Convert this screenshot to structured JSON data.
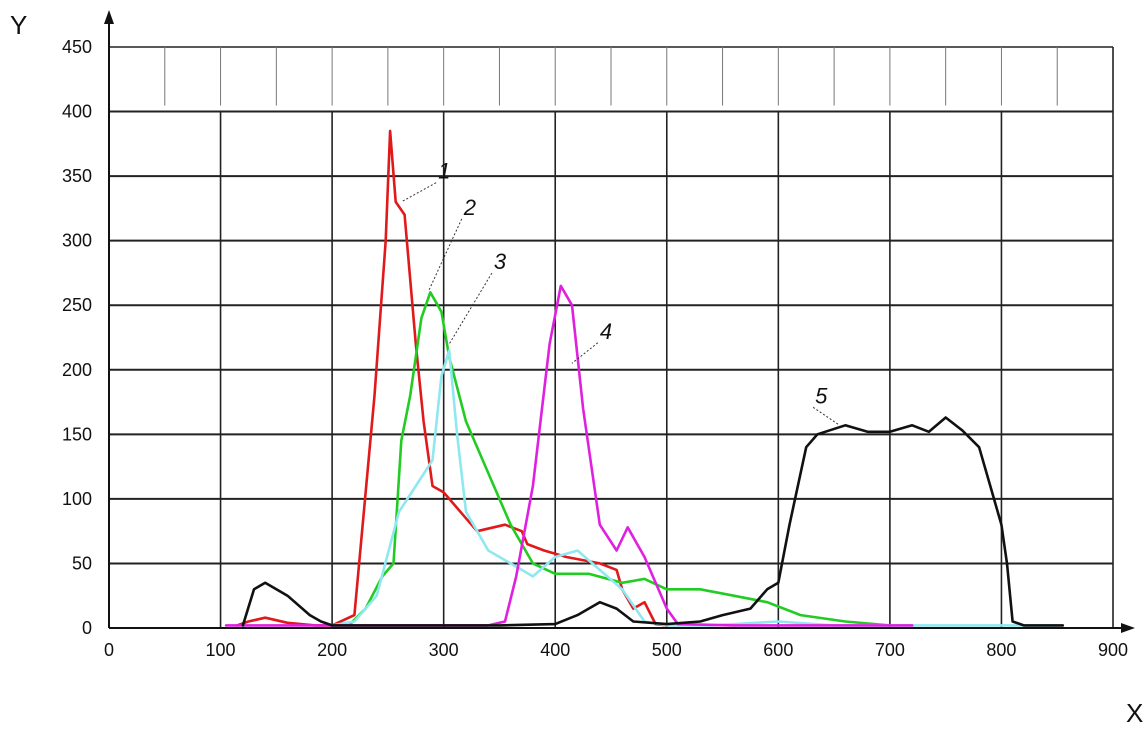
{
  "chart_data": {
    "type": "line",
    "xlabel": "X",
    "ylabel": "Y",
    "xlim": [
      0,
      900
    ],
    "ylim": [
      0,
      450
    ],
    "x_ticks": [
      0,
      100,
      200,
      300,
      400,
      500,
      600,
      700,
      800,
      900
    ],
    "y_ticks": [
      0,
      50,
      100,
      150,
      200,
      250,
      300,
      350,
      400,
      450
    ],
    "grid": true,
    "series": [
      {
        "name": "1",
        "color": "#e01a1a",
        "label_at": [
          295,
          348
        ],
        "pointer_to": [
          262,
          330
        ],
        "points": [
          [
            115,
            2
          ],
          [
            125,
            5
          ],
          [
            140,
            8
          ],
          [
            160,
            4
          ],
          [
            185,
            2
          ],
          [
            200,
            2
          ],
          [
            220,
            10
          ],
          [
            238,
            180
          ],
          [
            248,
            300
          ],
          [
            252,
            385
          ],
          [
            257,
            330
          ],
          [
            265,
            320
          ],
          [
            275,
            220
          ],
          [
            282,
            160
          ],
          [
            290,
            110
          ],
          [
            300,
            105
          ],
          [
            320,
            85
          ],
          [
            330,
            75
          ],
          [
            355,
            80
          ],
          [
            370,
            75
          ],
          [
            375,
            65
          ],
          [
            390,
            60
          ],
          [
            410,
            55
          ],
          [
            440,
            50
          ],
          [
            455,
            45
          ],
          [
            460,
            30
          ],
          [
            470,
            15
          ],
          [
            480,
            20
          ],
          [
            490,
            3
          ],
          [
            500,
            2
          ]
        ]
      },
      {
        "name": "2",
        "color": "#22cc22",
        "label_at": [
          318,
          320
        ],
        "pointer_to": [
          287,
          262
        ],
        "points": [
          [
            215,
            2
          ],
          [
            230,
            15
          ],
          [
            245,
            40
          ],
          [
            255,
            50
          ],
          [
            262,
            145
          ],
          [
            270,
            180
          ],
          [
            280,
            240
          ],
          [
            288,
            260
          ],
          [
            298,
            245
          ],
          [
            305,
            210
          ],
          [
            320,
            160
          ],
          [
            340,
            120
          ],
          [
            360,
            80
          ],
          [
            380,
            50
          ],
          [
            400,
            42
          ],
          [
            430,
            42
          ],
          [
            460,
            35
          ],
          [
            480,
            38
          ],
          [
            500,
            30
          ],
          [
            530,
            30
          ],
          [
            560,
            25
          ],
          [
            590,
            20
          ],
          [
            620,
            10
          ],
          [
            660,
            5
          ],
          [
            700,
            2
          ]
        ]
      },
      {
        "name": "3",
        "color": "#8fe8f0",
        "label_at": [
          345,
          278
        ],
        "pointer_to": [
          305,
          220
        ],
        "points": [
          [
            200,
            2
          ],
          [
            220,
            5
          ],
          [
            240,
            25
          ],
          [
            260,
            90
          ],
          [
            275,
            110
          ],
          [
            290,
            130
          ],
          [
            298,
            195
          ],
          [
            305,
            215
          ],
          [
            312,
            150
          ],
          [
            320,
            90
          ],
          [
            340,
            60
          ],
          [
            360,
            50
          ],
          [
            370,
            45
          ],
          [
            380,
            40
          ],
          [
            400,
            55
          ],
          [
            420,
            60
          ],
          [
            440,
            45
          ],
          [
            460,
            30
          ],
          [
            480,
            5
          ],
          [
            500,
            2
          ],
          [
            540,
            2
          ],
          [
            600,
            5
          ],
          [
            650,
            2
          ],
          [
            700,
            2
          ],
          [
            760,
            2
          ],
          [
            820,
            2
          ],
          [
            850,
            2
          ]
        ]
      },
      {
        "name": "4",
        "color": "#e020e0",
        "label_at": [
          440,
          224
        ],
        "pointer_to": [
          415,
          205
        ],
        "points": [
          [
            105,
            2
          ],
          [
            150,
            2
          ],
          [
            220,
            2
          ],
          [
            270,
            2
          ],
          [
            340,
            2
          ],
          [
            355,
            5
          ],
          [
            365,
            40
          ],
          [
            380,
            110
          ],
          [
            395,
            220
          ],
          [
            405,
            265
          ],
          [
            415,
            250
          ],
          [
            425,
            170
          ],
          [
            440,
            80
          ],
          [
            455,
            60
          ],
          [
            465,
            78
          ],
          [
            480,
            55
          ],
          [
            500,
            15
          ],
          [
            510,
            3
          ],
          [
            560,
            2
          ],
          [
            620,
            2
          ],
          [
            680,
            2
          ],
          [
            720,
            2
          ]
        ]
      },
      {
        "name": "5",
        "color": "#111111",
        "label_at": [
          633,
          174
        ],
        "pointer_to": [
          655,
          157
        ],
        "points": [
          [
            120,
            2
          ],
          [
            130,
            30
          ],
          [
            140,
            35
          ],
          [
            160,
            25
          ],
          [
            180,
            10
          ],
          [
            190,
            5
          ],
          [
            200,
            2
          ],
          [
            250,
            2
          ],
          [
            300,
            2
          ],
          [
            350,
            2
          ],
          [
            400,
            3
          ],
          [
            420,
            10
          ],
          [
            440,
            20
          ],
          [
            455,
            15
          ],
          [
            470,
            5
          ],
          [
            500,
            3
          ],
          [
            530,
            5
          ],
          [
            550,
            10
          ],
          [
            575,
            15
          ],
          [
            590,
            30
          ],
          [
            600,
            35
          ],
          [
            610,
            80
          ],
          [
            625,
            140
          ],
          [
            635,
            150
          ],
          [
            660,
            157
          ],
          [
            680,
            152
          ],
          [
            700,
            152
          ],
          [
            720,
            157
          ],
          [
            735,
            152
          ],
          [
            750,
            163
          ],
          [
            765,
            153
          ],
          [
            780,
            140
          ],
          [
            790,
            110
          ],
          [
            800,
            80
          ],
          [
            805,
            50
          ],
          [
            810,
            5
          ],
          [
            820,
            2
          ],
          [
            840,
            2
          ],
          [
            855,
            2
          ]
        ]
      }
    ]
  }
}
